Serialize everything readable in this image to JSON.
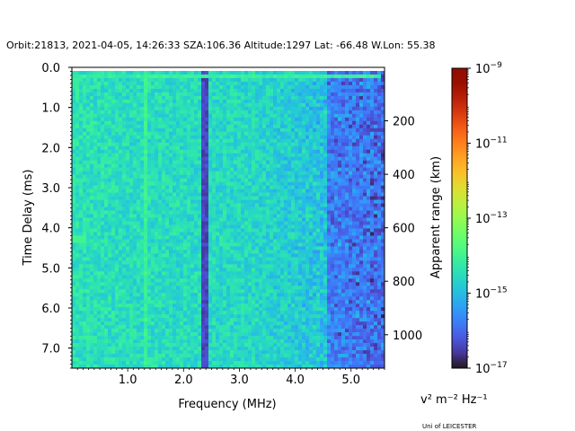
{
  "chart_data": {
    "type": "heatmap",
    "title": "Orbit:21813, 2021-04-05, 14:26:33 SZA:106.36 Altitude:1297 Lat: -66.48 W.Lon: 55.38",
    "xlabel": "Frequency (MHz)",
    "ylabel": "Time Delay (ms)",
    "ylabel_right": "Apparent range (km)",
    "xlim": [
      0.0,
      5.6
    ],
    "ylim": [
      7.5,
      0.0
    ],
    "x_ticks": [
      1.0,
      2.0,
      3.0,
      4.0,
      5.0
    ],
    "x_tick_labels": [
      "1.0",
      "2.0",
      "3.0",
      "4.0",
      "5.0"
    ],
    "y_ticks": [
      0.0,
      1.0,
      2.0,
      3.0,
      4.0,
      5.0,
      6.0,
      7.0
    ],
    "y_tick_labels": [
      "0.0",
      "1.0",
      "2.0",
      "3.0",
      "4.0",
      "5.0",
      "6.0",
      "7.0"
    ],
    "right_ticks_ms": [
      1.333,
      2.667,
      4.0,
      5.333,
      6.667
    ],
    "right_tick_labels": [
      "200",
      "400",
      "600",
      "800",
      "1000"
    ],
    "colorbar": {
      "colormap": "turbo",
      "scale": "log",
      "min_exp": -17,
      "max_exp": -9,
      "tick_exps": [
        -17,
        -15,
        -13,
        -11,
        -9
      ],
      "tick_labels": [
        "10",
        "10",
        "10",
        "10",
        "10"
      ],
      "tick_superscripts": [
        "−17",
        "−15",
        "−13",
        "−11",
        "−9"
      ],
      "units_label": "v² m⁻² Hz⁻¹"
    },
    "features": {
      "bright_columns_mhz": [
        1.32
      ],
      "dark_column_mhz": 2.37,
      "bright_row_ms": 0.2,
      "bright_row_end_mhz": 5.55,
      "secondary_bright_row_ms": 4.3,
      "quiet_region_start_mhz": 4.6
    }
  },
  "credit": "Uni of LEICESTER"
}
